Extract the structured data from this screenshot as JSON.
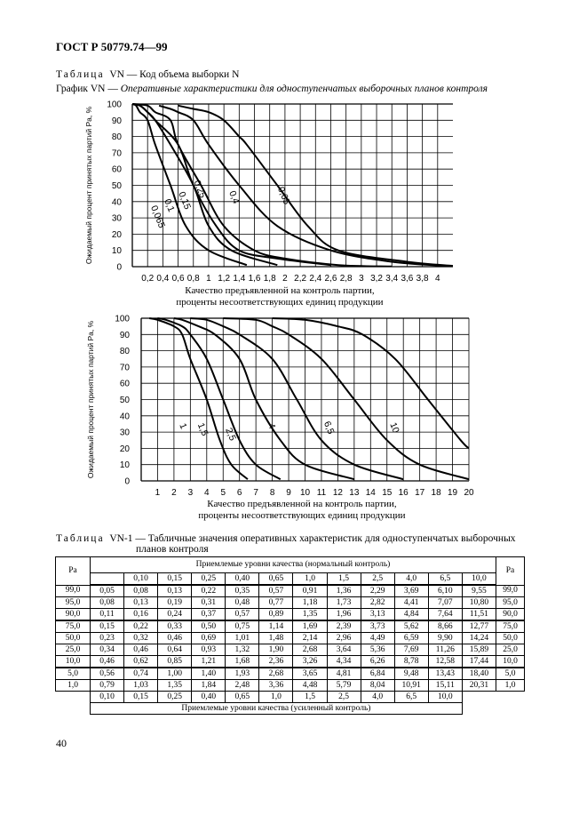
{
  "header": {
    "standard": "ГОСТ Р 50779.74—99"
  },
  "table_vn": {
    "label": "Таблица",
    "rest": "VN — Код объема выборки N"
  },
  "graph_title": {
    "label": "График VN — ",
    "rest": "Оперативные характеристики для одноступенчатых выборочных планов контроля"
  },
  "chart_data": [
    {
      "type": "line",
      "title": "",
      "xlabel": "Качество предъявленной на контроль партии, проценты несоответствующих единиц продукции",
      "xlabel_line1": "Качество предъявленной на контроль партии,",
      "xlabel_line2": "проценты несоответствующих единиц продукции",
      "ylabel": "Ожидаемый процент принятых партий Pa, %",
      "xlim": [
        0,
        4.2
      ],
      "ylim": [
        0,
        100
      ],
      "x_ticks": [
        "0,2",
        "0,4",
        "0,6",
        "0,8",
        "1",
        "1,2",
        "1,4",
        "1,6",
        "1,8",
        "2",
        "2,2",
        "2,4",
        "2,6",
        "2,8",
        "3",
        "3,2",
        "3,4",
        "3,6",
        "3,8",
        "4"
      ],
      "y_ticks": [
        "0",
        "10",
        "20",
        "30",
        "40",
        "50",
        "60",
        "70",
        "80",
        "90",
        "100"
      ],
      "series": [
        {
          "name": "0,065",
          "x": [
            0,
            0.05,
            0.1,
            0.2,
            0.3,
            0.5,
            0.7,
            1,
            1.5
          ],
          "y": [
            100,
            99,
            95,
            90,
            75,
            50,
            25,
            10,
            1
          ]
        },
        {
          "name": "0,1",
          "x": [
            0,
            0.1,
            0.2,
            0.3,
            0.5,
            0.8,
            1,
            1.3,
            1.9
          ],
          "y": [
            100,
            99,
            95,
            90,
            75,
            50,
            25,
            10,
            1
          ]
        },
        {
          "name": "0,15",
          "x": [
            0,
            0.1,
            0.2,
            0.3,
            0.6,
            0.8,
            1.1,
            1.4,
            1.9,
            2.6
          ],
          "y": [
            100,
            99,
            95,
            90,
            75,
            50,
            25,
            10,
            5,
            1
          ]
        },
        {
          "name": "0,25",
          "x": [
            0,
            0.2,
            0.3,
            0.5,
            0.6,
            0.9,
            1.2,
            1.6,
            2,
            2.7,
            3.4
          ],
          "y": [
            100,
            99,
            95,
            90,
            75,
            50,
            25,
            10,
            5,
            1,
            0.1
          ]
        },
        {
          "name": "0,4",
          "x": [
            0.35,
            0.5,
            0.6,
            0.8,
            1.0,
            1.4,
            1.9,
            2.6,
            3.4,
            4.1
          ],
          "y": [
            99,
            97,
            95,
            90,
            75,
            50,
            25,
            10,
            3,
            0.5
          ]
        },
        {
          "name": "0,65",
          "x": [
            0.6,
            0.8,
            1.0,
            1.2,
            1.4,
            1.5,
            1.9,
            2.3,
            2.7,
            3.6,
            4.2
          ],
          "y": [
            99,
            97,
            95,
            90,
            80,
            75,
            50,
            25,
            10,
            3,
            0.5
          ]
        }
      ]
    },
    {
      "type": "line",
      "title": "",
      "xlabel": "Качество предъявленной на контроль партии, проценты несоответствующих единиц продукции",
      "xlabel_line1": "Качество предъявленной на контроль партии,",
      "xlabel_line2": "проценты несоответствующих единиц продукции",
      "ylabel": "Ожидаемый процент принятых партий Pa, %",
      "xlim": [
        0,
        20
      ],
      "ylim": [
        0,
        100
      ],
      "x_ticks": [
        "1",
        "2",
        "3",
        "4",
        "5",
        "6",
        "7",
        "8",
        "9",
        "10",
        "11",
        "12",
        "13",
        "14",
        "15",
        "16",
        "17",
        "18",
        "19",
        "20"
      ],
      "y_ticks": [
        "0",
        "10",
        "20",
        "30",
        "40",
        "50",
        "60",
        "70",
        "80",
        "90",
        "100"
      ],
      "series": [
        {
          "name": "1",
          "x": [
            0.5,
            1,
            2,
            2.5,
            3,
            4,
            4.8,
            5.5,
            6.5
          ],
          "y": [
            100,
            99,
            95,
            90,
            75,
            50,
            25,
            10,
            1
          ]
        },
        {
          "name": "1,5",
          "x": [
            1,
            1.5,
            2.5,
            3,
            4,
            5,
            6,
            7,
            8.5
          ],
          "y": [
            100,
            99,
            95,
            90,
            75,
            50,
            25,
            10,
            1
          ]
        },
        {
          "name": "2,5",
          "x": [
            2,
            2.5,
            3.5,
            4.5,
            6,
            7,
            8.5,
            10,
            13
          ],
          "y": [
            100,
            99,
            95,
            90,
            75,
            50,
            25,
            10,
            1
          ]
        },
        {
          "name": "4",
          "x": [
            3,
            4,
            5,
            6,
            8,
            9.5,
            11,
            13,
            16
          ],
          "y": [
            100,
            99,
            95,
            90,
            75,
            50,
            25,
            10,
            1
          ]
        },
        {
          "name": "6,5",
          "x": [
            5,
            7,
            8,
            9,
            11,
            13,
            15,
            17,
            20
          ],
          "y": [
            100,
            99,
            95,
            90,
            75,
            50,
            25,
            10,
            1
          ]
        },
        {
          "name": "10",
          "x": [
            8,
            10,
            12,
            13.5,
            15.5,
            17.5,
            19.5,
            20
          ],
          "y": [
            100,
            99,
            95,
            90,
            75,
            50,
            25,
            20
          ]
        }
      ]
    }
  ],
  "table_vn1": {
    "label": "Таблица",
    "rest": "VN-1 — Табличные значения оперативных характеристик для одноступенчатых выборочных",
    "line2": "планов контроля",
    "pa_label": "Pa",
    "normal_header": "Приемлемые уровни качества (нормальный контроль)",
    "tightened_header": "Приемлемые уровни качества (усиленный контроль)",
    "normal_levels": [
      "0,10",
      "0,15",
      "0,25",
      "0,40",
      "0,65",
      "1,0",
      "1,5",
      "2,5",
      "4,0",
      "6,5",
      "10,0"
    ],
    "tightened_levels": [
      "0,10",
      "0,15",
      "0,25",
      "0,40",
      "0,65",
      "1,0",
      "1,5",
      "2,5",
      "4,0",
      "6,5",
      "10,0"
    ],
    "rows": [
      {
        "pa": "99,0",
        "v": [
          "0,05",
          "0,08",
          "0,13",
          "0,22",
          "0,35",
          "0,57",
          "0,91",
          "1,36",
          "2,29",
          "3,69",
          "6,10",
          "9,55"
        ]
      },
      {
        "pa": "95,0",
        "v": [
          "0,08",
          "0,13",
          "0,19",
          "0,31",
          "0,48",
          "0,77",
          "1,18",
          "1,73",
          "2,82",
          "4,41",
          "7,07",
          "10,80"
        ]
      },
      {
        "pa": "90,0",
        "v": [
          "0,11",
          "0,16",
          "0,24",
          "0,37",
          "0,57",
          "0,89",
          "1,35",
          "1,96",
          "3,13",
          "4,84",
          "7,64",
          "11,51"
        ]
      },
      {
        "pa": "75,0",
        "v": [
          "0,15",
          "0,22",
          "0,33",
          "0,50",
          "0,75",
          "1,14",
          "1,69",
          "2,39",
          "3,73",
          "5,62",
          "8,66",
          "12,77"
        ]
      },
      {
        "pa": "50,0",
        "v": [
          "0,23",
          "0,32",
          "0,46",
          "0,69",
          "1,01",
          "1,48",
          "2,14",
          "2,96",
          "4,49",
          "6,59",
          "9,90",
          "14,24"
        ]
      },
      {
        "pa": "25,0",
        "v": [
          "0,34",
          "0,46",
          "0,64",
          "0,93",
          "1,32",
          "1,90",
          "2,68",
          "3,64",
          "5,36",
          "7,69",
          "11,26",
          "15,89"
        ]
      },
      {
        "pa": "10,0",
        "v": [
          "0,46",
          "0,62",
          "0,85",
          "1,21",
          "1,68",
          "2,36",
          "3,26",
          "4,34",
          "6,26",
          "8,78",
          "12,58",
          "17,44"
        ]
      },
      {
        "pa": "5,0",
        "v": [
          "0,56",
          "0,74",
          "1,00",
          "1,40",
          "1,93",
          "2,68",
          "3,65",
          "4,81",
          "6,84",
          "9,48",
          "13,43",
          "18,40"
        ]
      },
      {
        "pa": "1,0",
        "v": [
          "0,79",
          "1,03",
          "1,35",
          "1,84",
          "2,48",
          "3,36",
          "4,48",
          "5,79",
          "8,04",
          "10,91",
          "15,11",
          "20,31"
        ]
      }
    ]
  },
  "page_number": "40"
}
